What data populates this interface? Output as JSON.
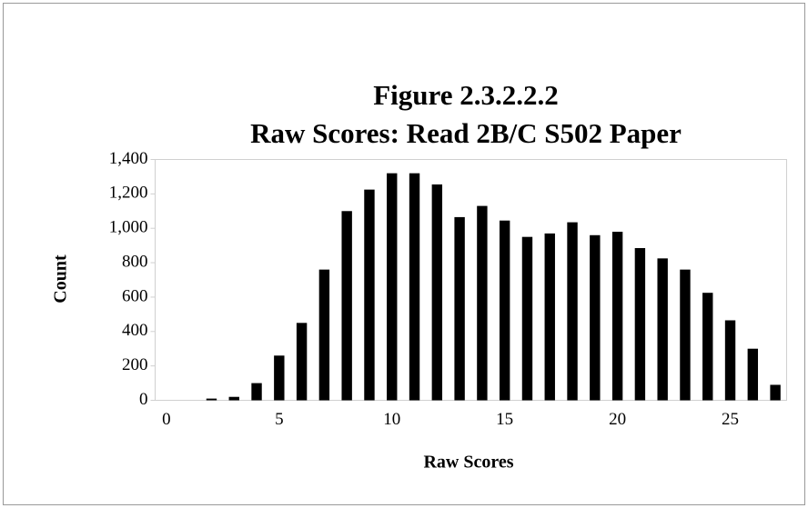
{
  "chart_data": {
    "type": "bar",
    "title": "Figure 2.3.2.2.2",
    "subtitle": "Raw Scores: Read 2B/C S502 Paper",
    "x_label": "Raw Scores",
    "y_label": "Count",
    "categories": [
      0,
      null,
      null,
      null,
      null,
      5,
      null,
      null,
      null,
      null,
      10,
      null,
      null,
      null,
      null,
      15,
      null,
      null,
      null,
      null,
      20,
      null,
      null,
      null,
      null,
      25,
      null,
      null
    ],
    "values": [
      0,
      0,
      10,
      20,
      100,
      260,
      450,
      760,
      1100,
      1225,
      1320,
      1320,
      1255,
      1065,
      1130,
      1045,
      950,
      970,
      1035,
      960,
      980,
      885,
      825,
      760,
      625,
      465,
      300,
      90
    ],
    "color": "#000000",
    "ylim": [
      0,
      1400
    ],
    "yticks": [
      0,
      200,
      400,
      600,
      800,
      {
        "value": 1000,
        "label": "1,000"
      },
      {
        "value": 1200,
        "label": "1,200"
      },
      {
        "value": 1400,
        "label": "1,400"
      }
    ],
    "grid": false
  }
}
